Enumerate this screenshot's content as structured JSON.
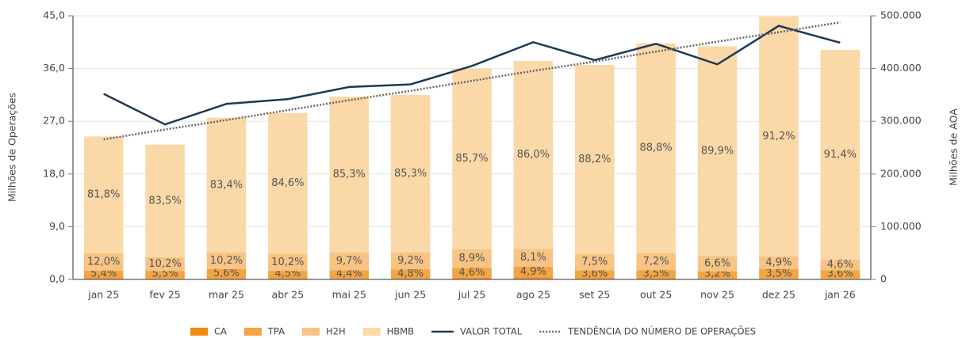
{
  "chart_data": {
    "type": "bar",
    "stacked": true,
    "ylabel": "Milhões de Operações",
    "y2label": "Milhões de AOA",
    "categories": [
      "jan 25",
      "fev 25",
      "mar 25",
      "abr 25",
      "mai 25",
      "jun 25",
      "jul 25",
      "ago 25",
      "set 25",
      "out 25",
      "nov 25",
      "dez 25",
      "jan 26"
    ],
    "ylim": [
      0,
      45
    ],
    "yticks": [
      {
        "value": 0,
        "label": "0,0"
      },
      {
        "value": 9,
        "label": "9,0"
      },
      {
        "value": 18,
        "label": "18,0"
      },
      {
        "value": 27,
        "label": "27,0"
      },
      {
        "value": 36,
        "label": "36,0"
      },
      {
        "value": 45,
        "label": "45,0"
      }
    ],
    "y2lim": [
      0,
      500000
    ],
    "y2ticks": [
      0,
      {
        "value": 100000,
        "label": "100.000"
      },
      {
        "value": 200000,
        "label": "200.000"
      },
      {
        "value": 300000,
        "label": "300.000"
      },
      {
        "value": 400000,
        "label": "400.000"
      },
      {
        "value": 500000,
        "label": "500.000"
      }
    ],
    "grid": true,
    "legend": "bottom",
    "series": [
      {
        "name": "CA",
        "type": "bar",
        "color": "#ef8c12",
        "values": [
          0.2,
          0.18,
          0.22,
          0.2,
          0.19,
          0.22,
          0.29,
          0.37,
          0.26,
          0.2,
          0.12,
          0.18,
          0.16
        ]
      },
      {
        "name": "TPA",
        "type": "bar",
        "color": "#f3a443",
        "values": [
          1.32,
          1.27,
          1.55,
          1.28,
          1.37,
          1.51,
          1.66,
          1.83,
          1.32,
          1.41,
          1.27,
          1.57,
          1.41
        ],
        "shares": [
          5.4,
          5.5,
          5.6,
          4.5,
          4.4,
          4.8,
          4.6,
          4.9,
          3.6,
          3.5,
          3.2,
          3.5,
          3.6
        ],
        "share_labels": [
          "5,4%",
          "5,5%",
          "5,6%",
          "4,5%",
          "4,4%",
          "4,8%",
          "4,6%",
          "4,9%",
          "3,6%",
          "3,5%",
          "3,2%",
          "3,5%",
          "3,6%"
        ]
      },
      {
        "name": "H2H",
        "type": "bar",
        "color": "#f7c484",
        "values": [
          2.93,
          2.35,
          2.82,
          2.9,
          3.03,
          2.9,
          3.2,
          3.02,
          2.75,
          2.9,
          2.63,
          2.2,
          1.8
        ],
        "shares": [
          12.0,
          10.2,
          10.2,
          10.2,
          9.7,
          9.2,
          8.9,
          8.1,
          7.5,
          7.2,
          6.6,
          4.9,
          4.6
        ],
        "share_labels": [
          "12,0%",
          "10,2%",
          "10,2%",
          "10,2%",
          "9,7%",
          "9,2%",
          "8,9%",
          "8,1%",
          "7,5%",
          "7,2%",
          "6,6%",
          "4,9%",
          "4,6%"
        ]
      },
      {
        "name": "HBMB",
        "type": "bar",
        "color": "#fbd8a7",
        "values": [
          19.96,
          19.21,
          23.02,
          24.03,
          26.61,
          26.87,
          30.85,
          32.08,
          32.28,
          35.79,
          35.78,
          40.95,
          35.83
        ],
        "shares": [
          81.8,
          83.5,
          83.4,
          84.6,
          85.3,
          85.3,
          85.7,
          86.0,
          88.2,
          88.8,
          89.9,
          91.2,
          91.4
        ],
        "share_labels": [
          "81,8%",
          "83,5%",
          "83,4%",
          "84,6%",
          "85,3%",
          "85,3%",
          "85,7%",
          "86,0%",
          "88,2%",
          "88,8%",
          "89,9%",
          "91,2%",
          "91,4%"
        ]
      },
      {
        "name": "VALOR TOTAL",
        "type": "line",
        "axis": "y2",
        "color": "#1b3a57",
        "values": [
          352000,
          294000,
          333000,
          342000,
          365000,
          370000,
          405000,
          450000,
          416000,
          447000,
          408000,
          481000,
          449000
        ]
      },
      {
        "name": "TENDÊNCIA DO NÚMERO DE OPERAÇÕES",
        "type": "line",
        "style": "dotted",
        "color": "#666666",
        "values": [
          23.9,
          25.6,
          27.2,
          28.9,
          30.6,
          32.2,
          33.9,
          35.6,
          37.2,
          38.9,
          40.6,
          42.2,
          43.9
        ]
      }
    ]
  }
}
